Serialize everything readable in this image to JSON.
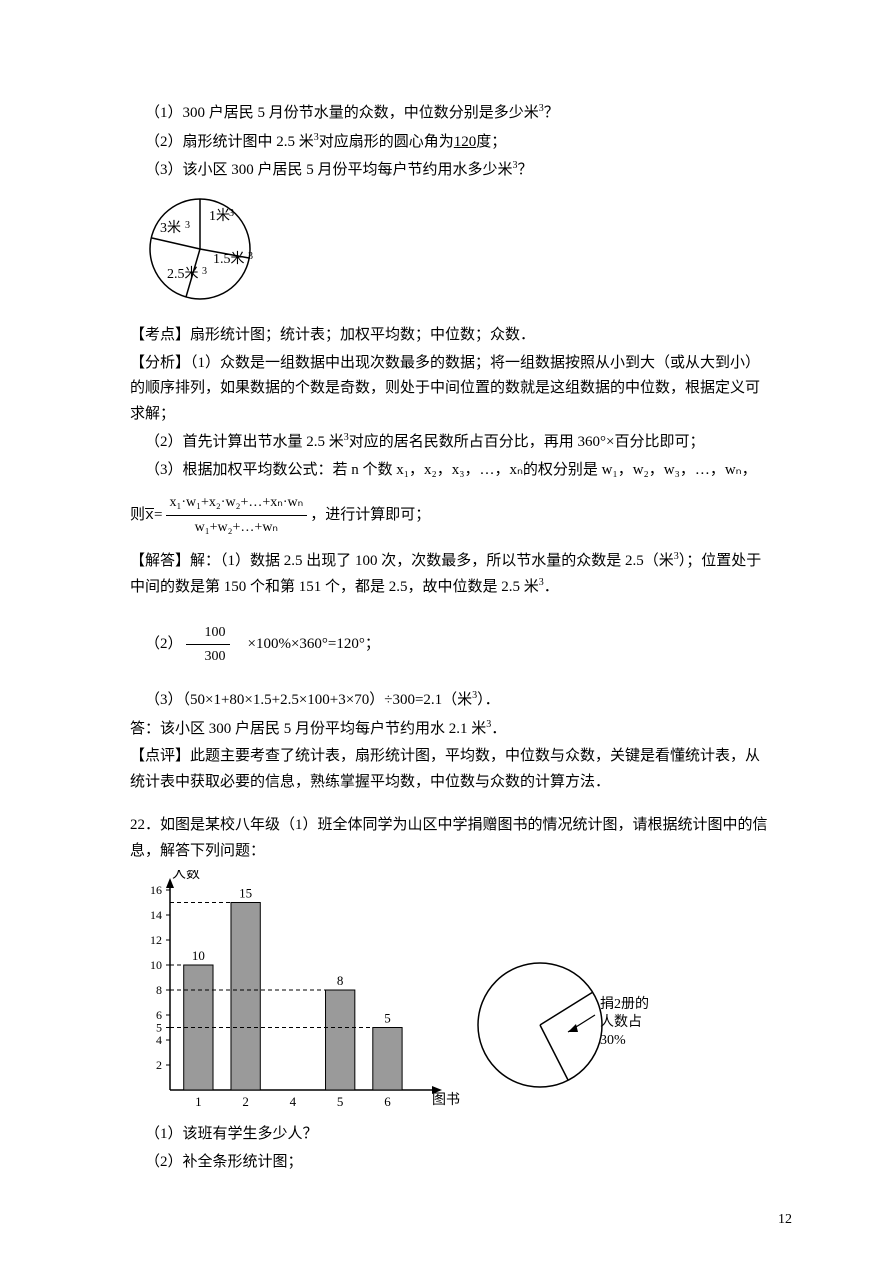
{
  "q21": {
    "line1_a": "（1）300 户居民 5 月份节水量的众数，中位数分别是多少米",
    "line1_b": "？",
    "line2_a": "（2）扇形统计图中 2.5 米",
    "line2_b": "对应扇形的圆心角为",
    "line2_blank": "120",
    "line2_c": "度；",
    "line3_a": "（3）该小区 300 户居民 5 月份平均每户节约用水多少米",
    "line3_b": "？",
    "pie": {
      "labels": [
        "1米",
        "1.5米",
        "2.5米",
        "3米"
      ],
      "bg": "#ffffff",
      "stroke": "#000000"
    },
    "kaodian_label": "【考点】",
    "kaodian": "扇形统计图；统计表；加权平均数；中位数；众数．",
    "fenxi_label": "【分析】",
    "fenxi1": "（1）众数是一组数据中出现次数最多的数据；将一组数据按照从小到大（或从大到小）的顺序排列，如果数据的个数是奇数，则处于中间位置的数就是这组数据的中位数，根据定义可求解；",
    "fenxi2_a": "（2）首先计算出节水量 2.5 米",
    "fenxi2_b": "对应的居名民数所占百分比，再用 360°×百分比即可；",
    "fenxi3": "（3）根据加权平均数公式：若 n 个数 x₁，x₂，x₃，…，xₙ的权分别是 w₁，w₂，w₃，…，wₙ，",
    "formula_pre": "则",
    "formula_num": "x₁·w₁+x₂·w₂+…+xₙ·wₙ",
    "formula_den": "w₁+w₂+…+wₙ",
    "formula_post": "，进行计算即可；",
    "jieda_label": "【解答】",
    "jieda1_a": "解：（1）数据 2.5 出现了 100 次，次数最多，所以节水量的众数是 2.5（米",
    "jieda1_b": "）；位置处于中间的数是第 150 个和第 151 个，都是 2.5，故中位数是 2.5 米",
    "jieda1_c": "．",
    "jieda2_a": "（2）",
    "jieda2_num": "100",
    "jieda2_den": "300",
    "jieda2_b": "×100%×360°=120°；",
    "jieda3_a": "（3）（50×1+80×1.5+2.5×100+3×70）÷300=2.1（米",
    "jieda3_b": "）．",
    "jieda3_ans": "答：该小区 300 户居民 5 月份平均每户节约用水 2.1 米",
    "jieda3_ans2": "．",
    "dianping_label": "【点评】",
    "dianping": "此题主要考查了统计表，扇形统计图，平均数，中位数与众数，关键是看懂统计表，从统计表中获取必要的信息，熟练掌握平均数，中位数与众数的计算方法．"
  },
  "q22": {
    "stem": "22．如图是某校八年级（1）班全体同学为山区中学捐赠图书的情况统计图，请根据统计图中的信息，解答下列问题：",
    "bar": {
      "ylabel": "人数",
      "xlabel": "图书/册",
      "yticks": [
        2,
        4,
        5,
        6,
        8,
        10,
        12,
        14,
        16
      ],
      "categories": [
        "1",
        "2",
        "4",
        "5",
        "6"
      ],
      "values": [
        10,
        15,
        null,
        8,
        5
      ],
      "value_labels": [
        "10",
        "15",
        "",
        "8",
        "5"
      ],
      "bar_color": "#9a9a9a",
      "axis_color": "#000000",
      "bg": "#ffffff"
    },
    "pie": {
      "label1": "捐2册的",
      "label2": "人数占",
      "label3": "30%",
      "slice_deg": 108,
      "stroke": "#000000",
      "bg": "#ffffff"
    },
    "sub1": "（1）该班有学生多少人？",
    "sub2": "（2）补全条形统计图；"
  },
  "pagenum": "12"
}
